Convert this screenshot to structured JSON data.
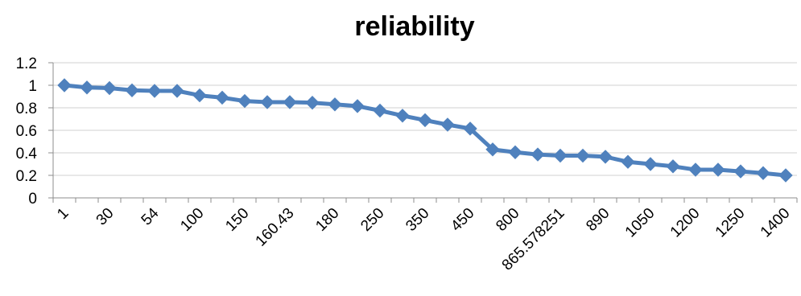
{
  "chart_data": {
    "type": "line",
    "title": "reliability",
    "xlabel": "",
    "ylabel": "",
    "ylim": [
      0,
      1.2
    ],
    "yticks": [
      "0",
      "0.2",
      "0.4",
      "0.6",
      "0.8",
      "1",
      "1.2"
    ],
    "grid": true,
    "legend": "none",
    "color": "#4f81bd",
    "marker": "diamond",
    "x_tick_labels_shown": [
      "1",
      "30",
      "54",
      "100",
      "150",
      "160.43",
      "180",
      "250",
      "350",
      "450",
      "800",
      "865.578251",
      "890",
      "1050",
      "1200",
      "1250",
      "1400"
    ],
    "x_tick_label_every": 2,
    "series": [
      {
        "values": [
          1.0,
          0.98,
          0.975,
          0.955,
          0.95,
          0.95,
          0.91,
          0.89,
          0.86,
          0.85,
          0.85,
          0.845,
          0.83,
          0.815,
          0.775,
          0.73,
          0.69,
          0.65,
          0.615,
          0.43,
          0.405,
          0.385,
          0.375,
          0.375,
          0.365,
          0.32,
          0.3,
          0.28,
          0.25,
          0.25,
          0.235,
          0.22,
          0.2
        ]
      }
    ]
  }
}
